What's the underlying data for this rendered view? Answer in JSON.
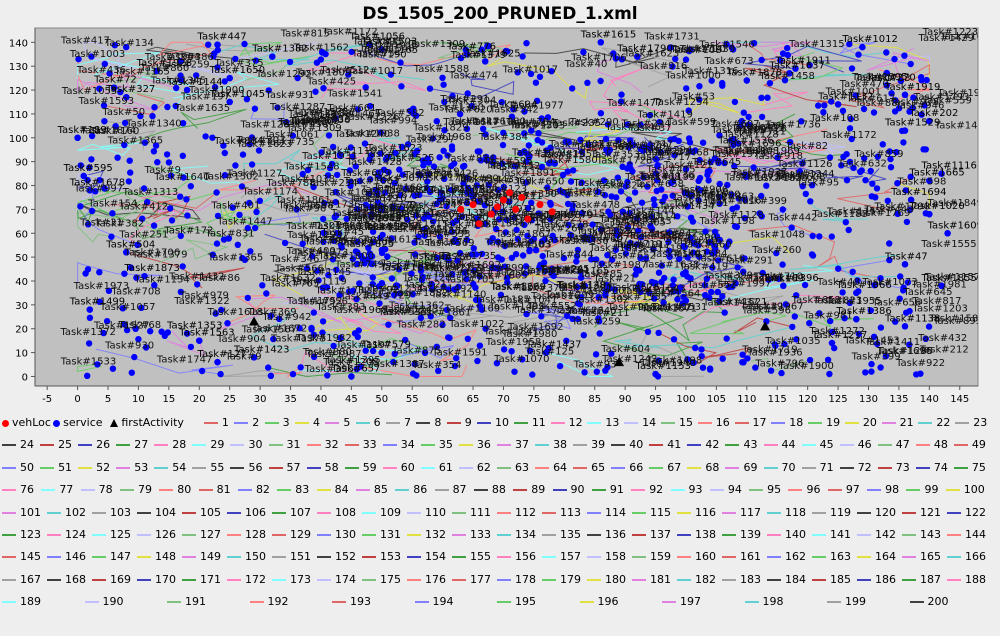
{
  "window": {
    "background": "#eeeeee"
  },
  "chart_data": {
    "type": "scatter",
    "title": "DS_1505_200_PRUNED_1.xml",
    "xlabel": "",
    "ylabel": "",
    "xlim": [
      -7,
      148
    ],
    "ylim": [
      -4,
      146
    ],
    "xticks": [
      -5,
      0,
      5,
      10,
      15,
      20,
      25,
      30,
      35,
      40,
      45,
      50,
      55,
      60,
      65,
      70,
      75,
      80,
      85,
      90,
      95,
      100,
      105,
      110,
      115,
      120,
      125,
      130,
      135,
      140,
      145
    ],
    "yticks": [
      0,
      10,
      20,
      30,
      40,
      50,
      60,
      70,
      80,
      90,
      100,
      110,
      120,
      130,
      140
    ],
    "grid": false,
    "plot_background": "#c0c0c0",
    "legend_placement": "bottom",
    "colors": {
      "vehLoc": "#ff0000",
      "service": "#0000ff",
      "firstActivity": "#000000"
    },
    "legend": {
      "vehLoc": "vehLoc",
      "service": "service",
      "firstActivity": "firstActivity",
      "routes": [
        "1",
        "2",
        "3",
        "4",
        "5",
        "6",
        "7",
        "8",
        "9",
        "10",
        "11",
        "12",
        "13",
        "14",
        "15",
        "16",
        "17",
        "18",
        "19",
        "20",
        "21",
        "22",
        "23",
        "24",
        "25",
        "26",
        "27",
        "28",
        "29",
        "30",
        "31",
        "32",
        "33",
        "34",
        "35",
        "36",
        "37",
        "38",
        "39",
        "40",
        "41",
        "42",
        "43",
        "44",
        "45",
        "46",
        "47",
        "48",
        "49",
        "50",
        "51",
        "52",
        "53",
        "54",
        "55",
        "56",
        "57",
        "58",
        "59",
        "60",
        "61",
        "62",
        "63",
        "64",
        "65",
        "66",
        "67",
        "68",
        "69",
        "70",
        "71",
        "72",
        "73",
        "74",
        "75",
        "76",
        "77",
        "78",
        "79",
        "80",
        "81",
        "82",
        "83",
        "84",
        "85",
        "86",
        "87",
        "88",
        "89",
        "90",
        "91",
        "92",
        "93",
        "94",
        "95",
        "96",
        "97",
        "98",
        "99",
        "100",
        "101",
        "102",
        "103",
        "104",
        "105",
        "106",
        "107",
        "108",
        "109",
        "110",
        "111",
        "112",
        "113",
        "114",
        "115",
        "116",
        "117",
        "118",
        "119",
        "120",
        "121",
        "122",
        "123",
        "124",
        "125",
        "126",
        "127",
        "128",
        "129",
        "130",
        "131",
        "132",
        "133",
        "134",
        "135",
        "136",
        "137",
        "138",
        "139",
        "140",
        "141",
        "142",
        "143",
        "144",
        "145",
        "146",
        "147",
        "148",
        "149",
        "150",
        "151",
        "152",
        "153",
        "154",
        "155",
        "156",
        "157",
        "158",
        "159",
        "160",
        "161",
        "162",
        "163",
        "164",
        "165",
        "166",
        "167",
        "168",
        "169",
        "170",
        "171",
        "172",
        "173",
        "174",
        "175",
        "176",
        "177",
        "178",
        "179",
        "180",
        "181",
        "182",
        "183",
        "184",
        "185",
        "186",
        "187",
        "188",
        "189",
        "190",
        "191",
        "192",
        "193",
        "194",
        "195",
        "196",
        "197",
        "198",
        "199",
        "200"
      ],
      "route_palette": [
        "#e06666",
        "#8080ff",
        "#66cc66",
        "#e0e040",
        "#e080e0",
        "#60d0d0",
        "#a0a0a0",
        "#404040",
        "#c04040",
        "#4040c0",
        "#40a040",
        "#ff80c0",
        "#80ffff",
        "#c0c0ff",
        "#80c080",
        "#ff8080"
      ]
    },
    "vehicle_locations": [
      {
        "x": 65,
        "y": 72
      },
      {
        "x": 68,
        "y": 68
      },
      {
        "x": 70,
        "y": 74
      },
      {
        "x": 72,
        "y": 70
      },
      {
        "x": 74,
        "y": 66
      },
      {
        "x": 76,
        "y": 72
      },
      {
        "x": 63,
        "y": 70
      },
      {
        "x": 66,
        "y": 64
      },
      {
        "x": 71,
        "y": 77
      },
      {
        "x": 78,
        "y": 69
      },
      {
        "x": 69,
        "y": 71
      },
      {
        "x": 73,
        "y": 75
      }
    ],
    "first_activities": [
      {
        "x": 89,
        "y": 6
      },
      {
        "x": 113,
        "y": 21
      },
      {
        "x": 29,
        "y": 23
      }
    ],
    "labeled_services": [
      {
        "label": "Task#447",
        "x": 23,
        "y": 139
      },
      {
        "label": "Task#1382",
        "x": 32,
        "y": 134
      },
      {
        "label": "Task#1056",
        "x": 48,
        "y": 139
      },
      {
        "label": "Task#1503",
        "x": 50,
        "y": 137
      },
      {
        "label": "Task#776",
        "x": 64,
        "y": 135
      },
      {
        "label": "Task#1625",
        "x": 67,
        "y": 132
      },
      {
        "label": "Task#1615",
        "x": 86,
        "y": 140
      },
      {
        "label": "Task#1012",
        "x": 129,
        "y": 138
      },
      {
        "label": "Task#1928",
        "x": 13,
        "y": 128
      },
      {
        "label": "Task#1650",
        "x": 25,
        "y": 125
      },
      {
        "label": "Task#1911",
        "x": 118,
        "y": 129
      },
      {
        "label": "Task#1637",
        "x": 117,
        "y": 127
      },
      {
        "label": "Task#72",
        "x": 6,
        "y": 121
      },
      {
        "label": "Task#327",
        "x": 8,
        "y": 117
      },
      {
        "label": "Task#1144",
        "x": 18,
        "y": 120
      },
      {
        "label": "Task#1045",
        "x": 25,
        "y": 115
      },
      {
        "label": "Task#270",
        "x": 133,
        "y": 122
      },
      {
        "label": "Task#1919",
        "x": 136,
        "y": 118
      },
      {
        "label": "Task#202",
        "x": 140,
        "y": 107
      },
      {
        "label": "Task#189",
        "x": 0,
        "y": 100
      },
      {
        "label": "Task#1529",
        "x": 136,
        "y": 103
      },
      {
        "label": "Task#595",
        "x": 1,
        "y": 84
      },
      {
        "label": "Task#1678",
        "x": 2,
        "y": 78
      },
      {
        "label": "Task#1116",
        "x": 142,
        "y": 85
      },
      {
        "label": "Task#1665",
        "x": 140,
        "y": 82
      },
      {
        "label": "Task#1694",
        "x": 137,
        "y": 74
      },
      {
        "label": "Task#1020",
        "x": 140,
        "y": 68
      },
      {
        "label": "Task#1609",
        "x": 143,
        "y": 60
      },
      {
        "label": "Task#504",
        "x": 8,
        "y": 52
      },
      {
        "label": "Task#1873",
        "x": 11,
        "y": 42
      },
      {
        "label": "Task#47",
        "x": 136,
        "y": 47
      },
      {
        "label": "Task#1855",
        "x": 142,
        "y": 38
      },
      {
        "label": "Task#1499",
        "x": 2,
        "y": 28
      },
      {
        "label": "Task#1353",
        "x": 18,
        "y": 18
      },
      {
        "label": "Task#1563",
        "x": 20,
        "y": 15
      },
      {
        "label": "Task#1138",
        "x": 136,
        "y": 21
      },
      {
        "label": "Task#1423",
        "x": 29,
        "y": 8
      },
      {
        "label": "Task#127",
        "x": 23,
        "y": 6
      },
      {
        "label": "Task#657",
        "x": 45,
        "y": 0
      },
      {
        "label": "Task#579",
        "x": 50,
        "y": 10
      },
      {
        "label": "Task#1437",
        "x": 77,
        "y": 10
      },
      {
        "label": "Task#1153",
        "x": 95,
        "y": 1
      },
      {
        "label": "Task#1217",
        "x": 124,
        "y": 14
      },
      {
        "label": "Task#1386",
        "x": 128,
        "y": 24
      },
      {
        "label": "Task#1066",
        "x": 128,
        "y": 35
      },
      {
        "label": "Task#1396",
        "x": 116,
        "y": 38
      },
      {
        "label": "Task#1790",
        "x": 92,
        "y": 134
      },
      {
        "label": "Task#1878",
        "x": 110,
        "y": 124
      },
      {
        "label": "Task#1132",
        "x": 125,
        "y": 114
      }
    ],
    "service_count": 1505,
    "route_count": 200
  }
}
